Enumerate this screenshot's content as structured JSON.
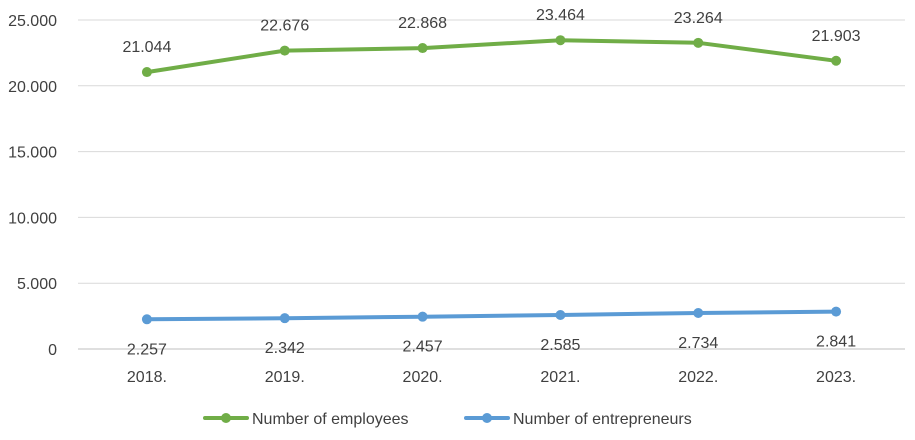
{
  "chart_data": {
    "type": "line",
    "title": "",
    "xlabel": "",
    "ylabel": "",
    "categories": [
      "2018.",
      "2019.",
      "2020.",
      "2021.",
      "2022.",
      "2023."
    ],
    "ylim": [
      0,
      25000
    ],
    "yticks": [
      0,
      5000,
      10000,
      15000,
      20000,
      25000
    ],
    "ytick_labels": [
      "0",
      "5.000",
      "10.000",
      "15.000",
      "20.000",
      "25.000"
    ],
    "grid": true,
    "legend_position": "bottom",
    "series": [
      {
        "name": "Number of employees",
        "color": "#70ad47",
        "values": [
          21044,
          22676,
          22868,
          23464,
          23264,
          21903
        ],
        "labels": [
          "21.044",
          "22.676",
          "22.868",
          "23.464",
          "23.264",
          "21.903"
        ],
        "label_position": "above"
      },
      {
        "name": "Number of entrepreneurs",
        "color": "#5b9bd5",
        "values": [
          2257,
          2342,
          2457,
          2585,
          2734,
          2841
        ],
        "labels": [
          "2.257",
          "2.342",
          "2.457",
          "2.585",
          "2.734",
          "2.841"
        ],
        "label_position": "below"
      }
    ]
  }
}
